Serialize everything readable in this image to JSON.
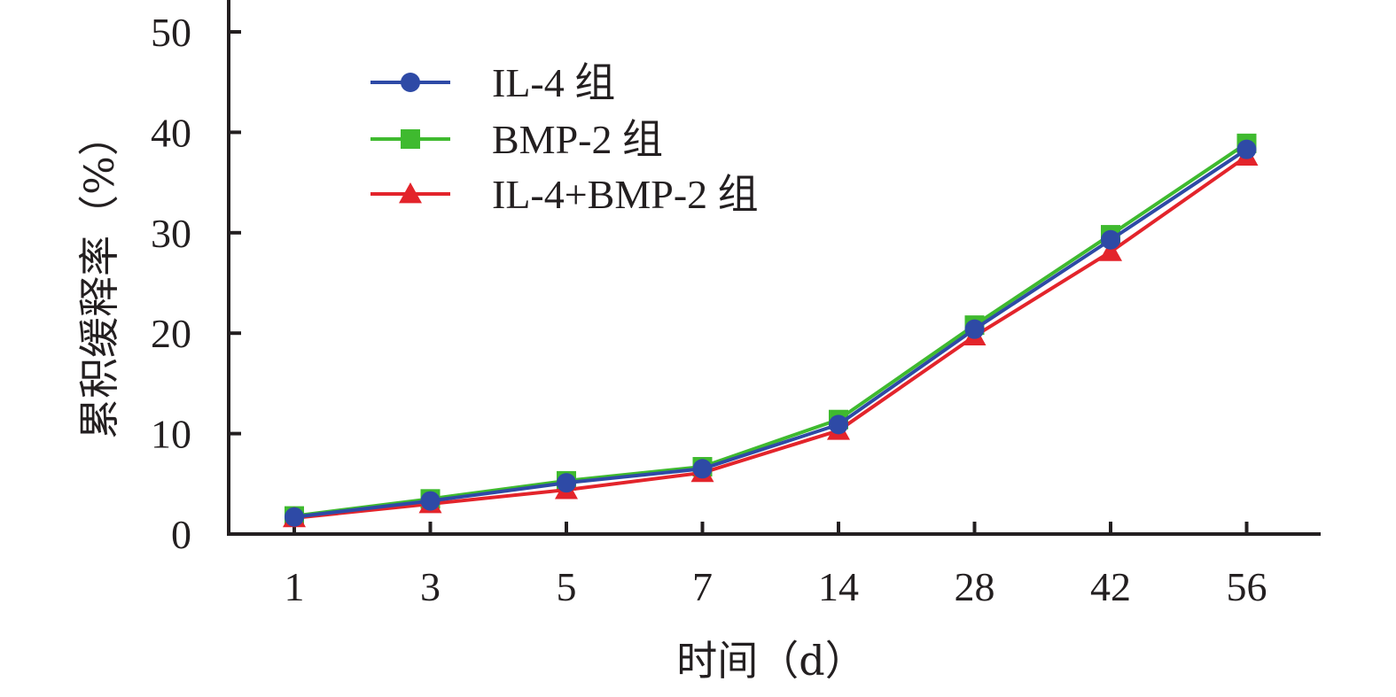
{
  "chart_data": {
    "type": "line",
    "title": "",
    "xlabel": "时间（d）",
    "ylabel": "累积缓释率（%）",
    "categories": [
      "1",
      "3",
      "5",
      "7",
      "14",
      "28",
      "42",
      "56"
    ],
    "ylim": [
      0,
      50
    ],
    "yticks": [
      0,
      10,
      20,
      30,
      40,
      50
    ],
    "grid": false,
    "legend_position": "top-left",
    "series": [
      {
        "name": "IL-4 组",
        "color": "#2e4aa6",
        "marker": "circle",
        "values": [
          1.7,
          3.3,
          5.1,
          6.5,
          10.9,
          20.4,
          29.3,
          38.3
        ]
      },
      {
        "name": "BMP-2 组",
        "color": "#3fba2f",
        "marker": "square",
        "values": [
          1.8,
          3.5,
          5.3,
          6.7,
          11.4,
          20.8,
          29.8,
          38.9
        ]
      },
      {
        "name": "IL-4+BMP-2 组",
        "color": "#e3242b",
        "marker": "triangle",
        "values": [
          1.6,
          3.0,
          4.4,
          6.1,
          10.3,
          19.7,
          28.1,
          37.6
        ]
      }
    ]
  }
}
